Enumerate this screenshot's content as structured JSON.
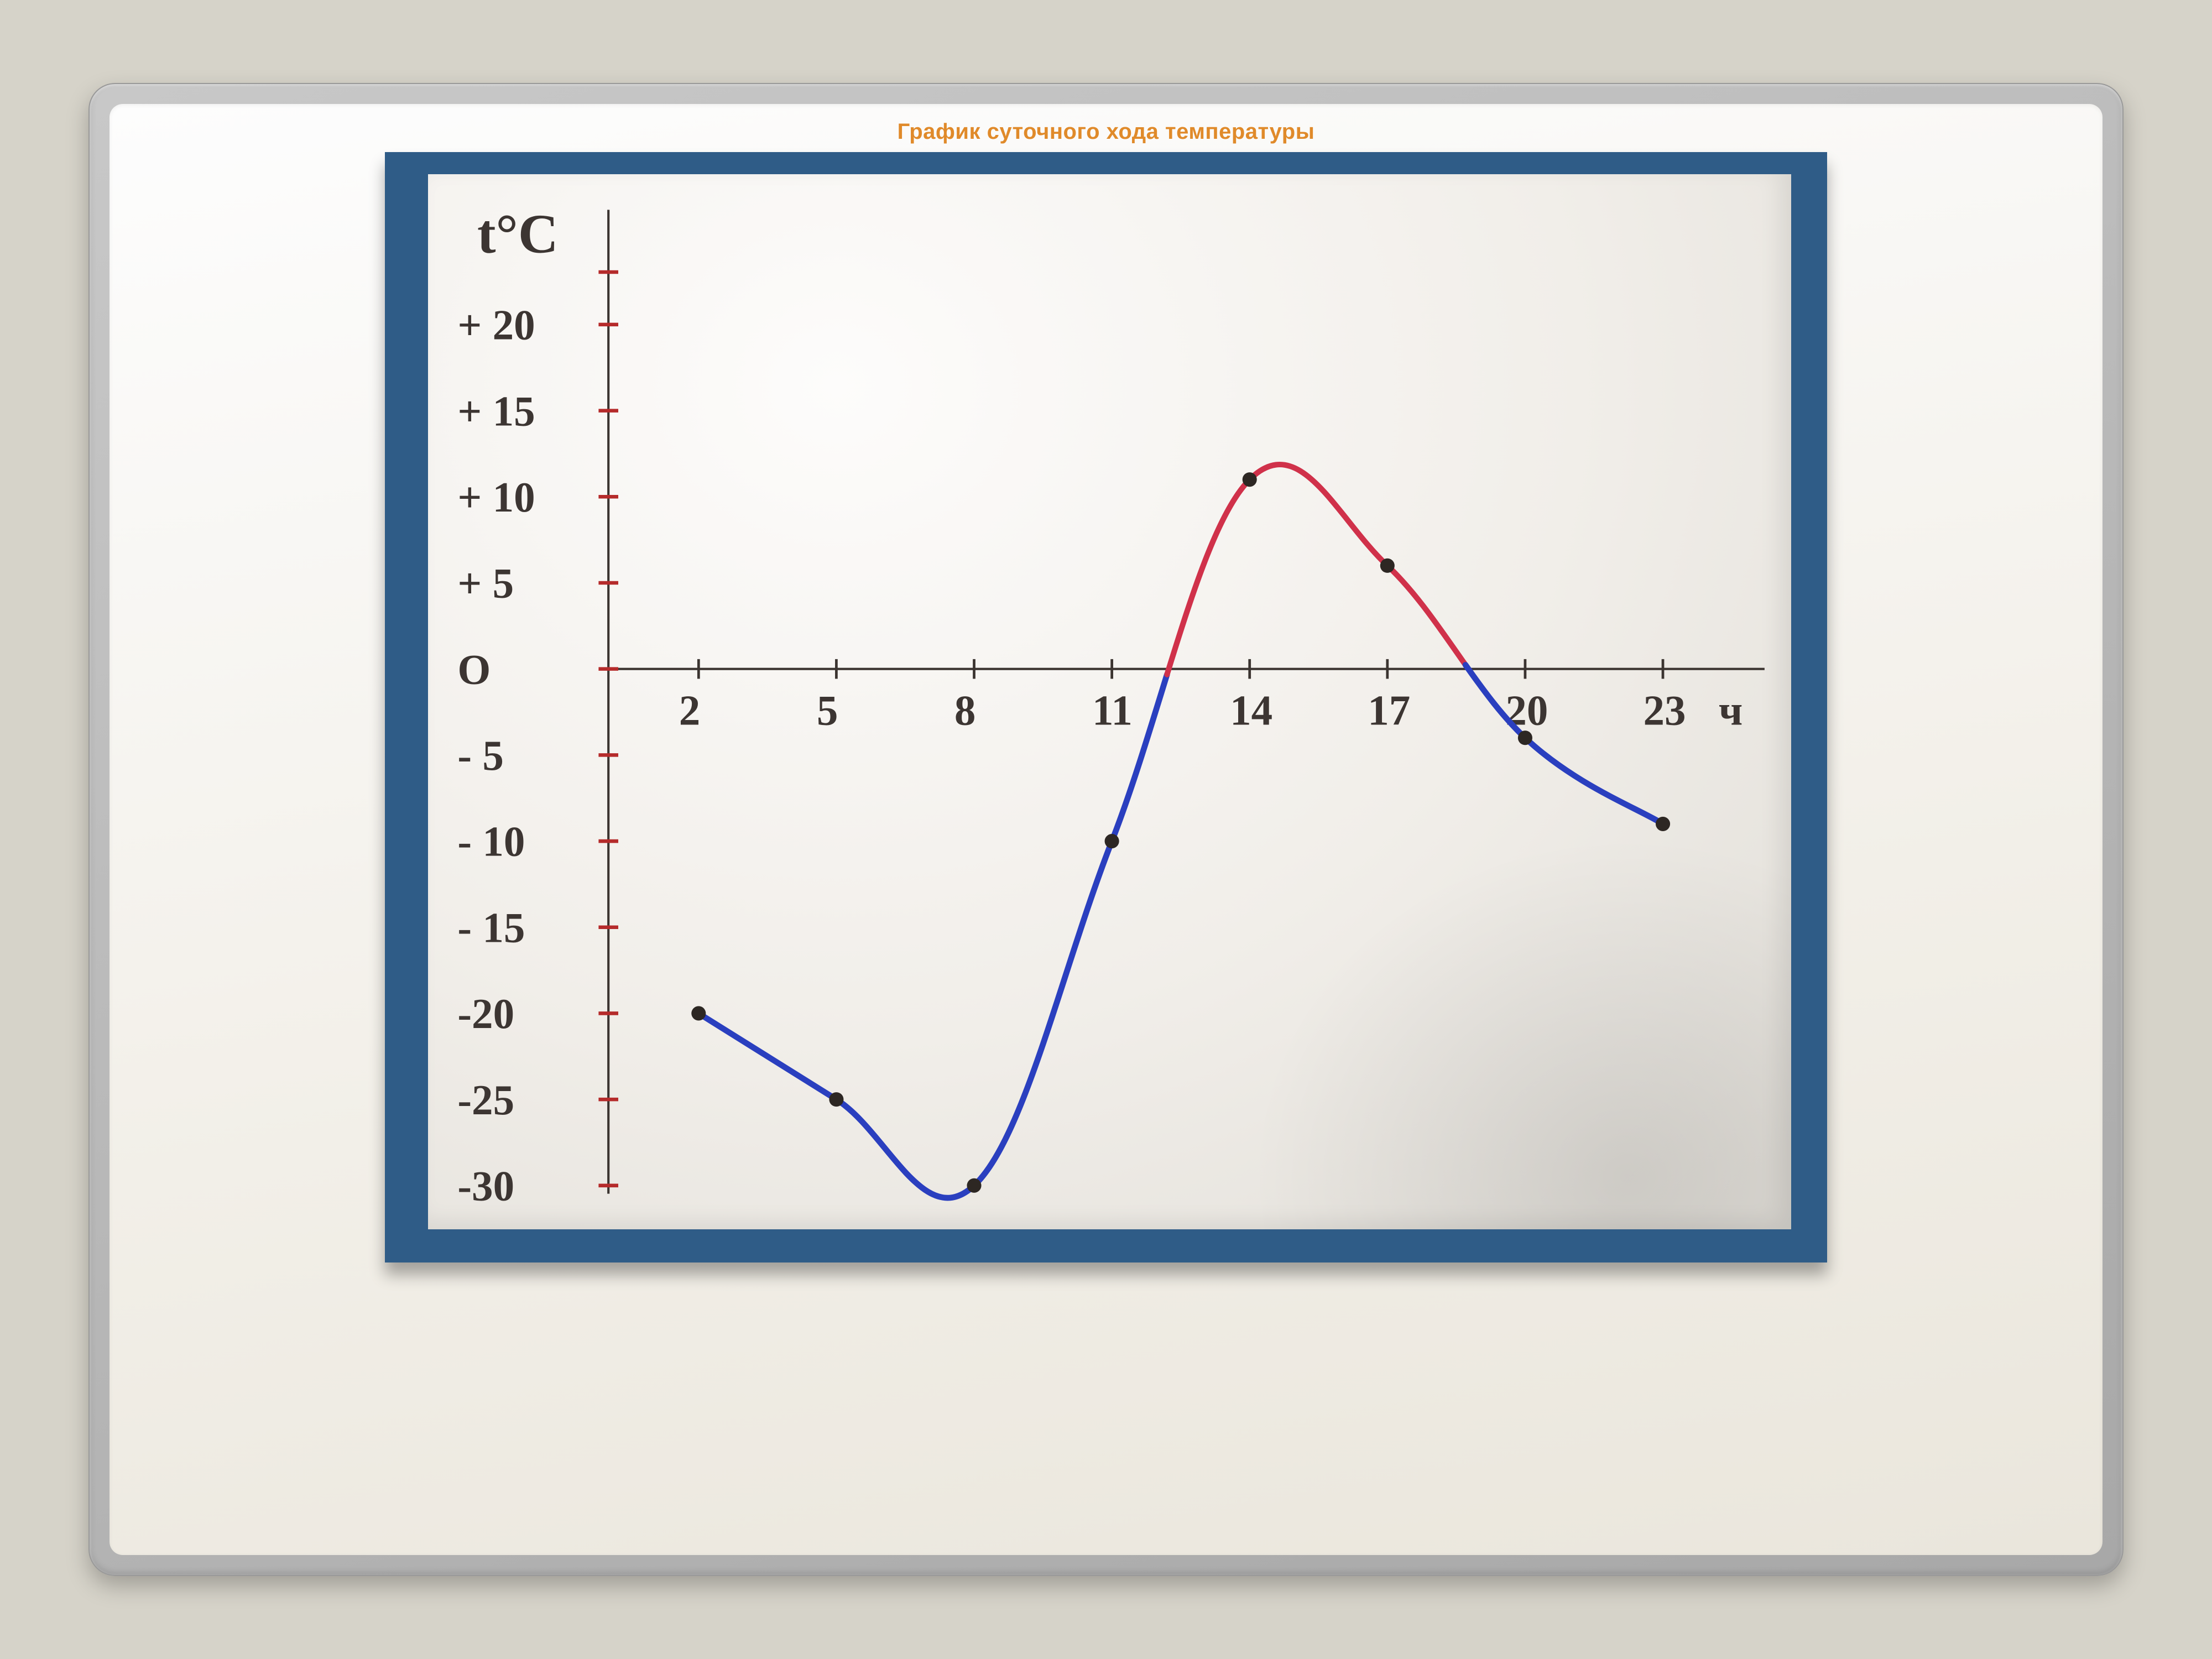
{
  "slide": {
    "title": "График суточного хода температуры",
    "title_color": "#e08a2a",
    "title_fontsize_pt": 30,
    "frame_bg_start": "#c8c8c8",
    "frame_bg_end": "#a8a8a8",
    "inner_bg": "#f5f2ea",
    "page_bg": "#d6d3c9"
  },
  "chart": {
    "type": "line",
    "photo_border_color": "#2f5c87",
    "paper_color": "#f2efe9",
    "axis_color": "#3b3430",
    "y_axis_title": "t°C",
    "x_axis_unit": "ч",
    "label_font": "Comic Sans MS, Segoe Script, cursive",
    "label_fontsize": 26,
    "hours_axis": {
      "values": [
        2,
        5,
        8,
        11,
        14,
        17,
        20,
        23
      ],
      "labels": [
        "2",
        "5",
        "8",
        "11",
        "14",
        "17",
        "20",
        "23"
      ]
    },
    "temp_axis": {
      "ylim": [
        -30,
        25
      ],
      "tick_values": [
        20,
        15,
        10,
        5,
        0,
        -5,
        -10,
        -15,
        -20,
        -25,
        -30
      ],
      "tick_labels": [
        "+ 20",
        "+ 15",
        "+ 10",
        "+  5",
        "O",
        "-  5",
        "- 10",
        "- 15",
        "-20",
        "-25",
        "-30"
      ],
      "tick_color": "#b52b2b"
    },
    "data_points": [
      {
        "hour": 2,
        "temp": -20
      },
      {
        "hour": 5,
        "temp": -25
      },
      {
        "hour": 8,
        "temp": -30
      },
      {
        "hour": 11,
        "temp": -10
      },
      {
        "hour": 14,
        "temp": 11
      },
      {
        "hour": 17,
        "temp": 6
      },
      {
        "hour": 20,
        "temp": -4
      },
      {
        "hour": 23,
        "temp": -9
      }
    ],
    "segments": [
      {
        "from_hour": 2,
        "to_hour": 12.2,
        "color": "#2a3fbf"
      },
      {
        "from_hour": 12.2,
        "to_hour": 18.7,
        "color": "#d0314a"
      },
      {
        "from_hour": 18.7,
        "to_hour": 23,
        "color": "#2a3fbf"
      }
    ],
    "cold_color": "#2a3fbf",
    "warm_color": "#d0314a",
    "point_color": "#2d2723",
    "line_width": 3.6
  }
}
